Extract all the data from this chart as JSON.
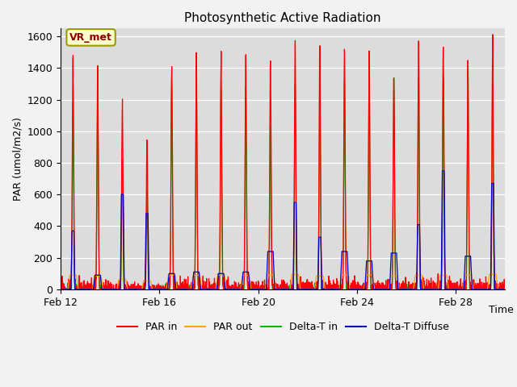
{
  "title": "Photosynthetic Active Radiation",
  "ylabel": "PAR (umol/m2/s)",
  "xlabel": "Time",
  "annotation": "VR_met",
  "ylim": [
    0,
    1650
  ],
  "legend_labels": [
    "PAR in",
    "PAR out",
    "Delta-T in",
    "Delta-T Diffuse"
  ],
  "legend_colors": [
    "#ff0000",
    "#ffa500",
    "#00bb00",
    "#0000cc"
  ],
  "background_color": "#dcdcdc",
  "grid_color": "#ffffff",
  "xtick_labels": [
    "Feb 12",
    "Feb 16",
    "Feb 20",
    "Feb 24",
    "Feb 28"
  ],
  "xtick_positions": [
    0,
    4,
    8,
    12,
    16
  ],
  "num_days": 18,
  "points_per_day": 144,
  "day_peaks_PAR_in": [
    1450,
    1440,
    1190,
    950,
    1450,
    1460,
    1460,
    1450,
    1470,
    1550,
    1560,
    1500,
    1510,
    1330,
    1560,
    1560,
    1430,
    1580
  ],
  "day_peaks_PAR_out": [
    90,
    85,
    65,
    55,
    90,
    90,
    90,
    90,
    90,
    95,
    85,
    90,
    90,
    85,
    90,
    90,
    90,
    95
  ],
  "day_peaks_DeltaT_in": [
    1200,
    1270,
    820,
    640,
    1280,
    1300,
    1280,
    1280,
    1050,
    1320,
    1310,
    1330,
    1300,
    1340,
    1350,
    1360,
    1390,
    1300
  ],
  "day_peaks_DeltaT_diff": [
    370,
    90,
    600,
    480,
    100,
    110,
    100,
    110,
    240,
    550,
    330,
    240,
    180,
    230,
    410,
    750,
    210,
    670
  ]
}
